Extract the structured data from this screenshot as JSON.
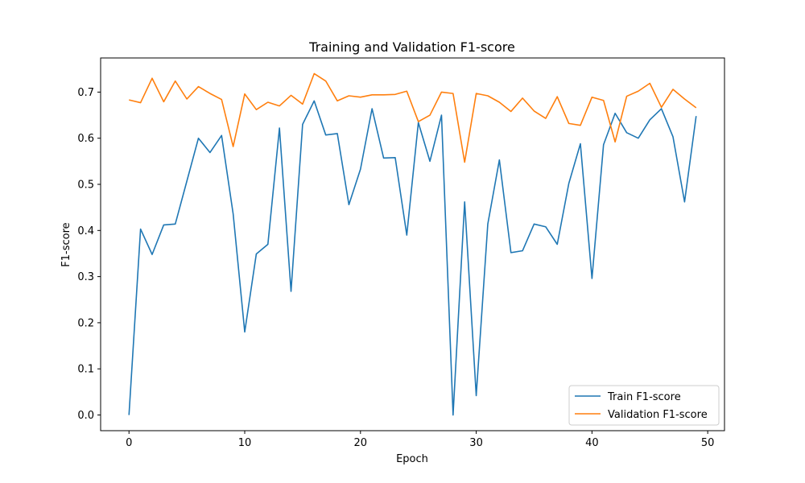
{
  "chart_data": {
    "type": "line",
    "title": "Training and Validation F1-score",
    "xlabel": "Epoch",
    "ylabel": "F1-score",
    "xlim": [
      -2.45,
      51.45
    ],
    "ylim": [
      -0.034,
      0.774
    ],
    "xticks": [
      0,
      10,
      20,
      30,
      40,
      50
    ],
    "yticks": [
      0.0,
      0.1,
      0.2,
      0.3,
      0.4,
      0.5,
      0.6,
      0.7
    ],
    "grid": false,
    "legend_position": "lower right",
    "x": [
      0,
      1,
      2,
      3,
      4,
      5,
      6,
      7,
      8,
      9,
      10,
      11,
      12,
      13,
      14,
      15,
      16,
      17,
      18,
      19,
      20,
      21,
      22,
      23,
      24,
      25,
      26,
      27,
      28,
      29,
      30,
      31,
      32,
      33,
      34,
      35,
      36,
      37,
      38,
      39,
      40,
      41,
      42,
      43,
      44,
      45,
      46,
      47,
      48,
      49
    ],
    "series": [
      {
        "name": "Train F1-score",
        "color": "#1f77b4",
        "values": [
          0.0,
          0.403,
          0.348,
          0.412,
          0.414,
          0.507,
          0.6,
          0.569,
          0.606,
          0.436,
          0.18,
          0.349,
          0.37,
          0.622,
          0.268,
          0.63,
          0.681,
          0.607,
          0.61,
          0.456,
          0.533,
          0.664,
          0.557,
          0.558,
          0.39,
          0.634,
          0.55,
          0.65,
          0.0,
          0.462,
          0.042,
          0.414,
          0.553,
          0.352,
          0.356,
          0.414,
          0.408,
          0.37,
          0.502,
          0.588,
          0.296,
          0.586,
          0.654,
          0.612,
          0.6,
          0.64,
          0.664,
          0.603,
          0.462,
          0.648
        ]
      },
      {
        "name": "Validation F1-score",
        "color": "#ff7f0e",
        "values": [
          0.683,
          0.677,
          0.73,
          0.679,
          0.724,
          0.685,
          0.712,
          0.697,
          0.684,
          0.582,
          0.696,
          0.662,
          0.678,
          0.67,
          0.693,
          0.674,
          0.74,
          0.724,
          0.681,
          0.692,
          0.689,
          0.694,
          0.694,
          0.695,
          0.702,
          0.636,
          0.65,
          0.7,
          0.697,
          0.548,
          0.697,
          0.692,
          0.678,
          0.658,
          0.687,
          0.659,
          0.643,
          0.69,
          0.632,
          0.628,
          0.689,
          0.682,
          0.592,
          0.691,
          0.702,
          0.719,
          0.667,
          0.706,
          0.685,
          0.666
        ]
      }
    ]
  }
}
